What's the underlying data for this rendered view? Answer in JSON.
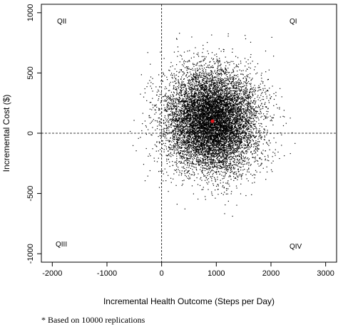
{
  "chart_data": {
    "type": "scatter",
    "title": "",
    "xlabel": "Incremental Health Outcome (Steps per Day)",
    "ylabel": "Incremental Cost ($)",
    "xlim": [
      -2200,
      3200
    ],
    "ylim": [
      -1070,
      1070
    ],
    "x_ticks": [
      -2000,
      -1000,
      0,
      1000,
      2000,
      3000
    ],
    "y_ticks": [
      -1000,
      -500,
      0,
      500,
      1000
    ],
    "x_tick_labels": [
      "-2000",
      "-1000",
      "0",
      "1000",
      "2000",
      "3000"
    ],
    "y_tick_labels": [
      "-1000",
      "-500",
      "0",
      "500",
      "1000"
    ],
    "reference_lines": {
      "x": 0,
      "y": 0,
      "style": "dashed"
    },
    "quadrant_labels": {
      "upper_right": "QI",
      "upper_left": "QII",
      "lower_left": "QIII",
      "lower_right": "QIV"
    },
    "point_cloud": {
      "replications": 10000,
      "mean_x": 930,
      "mean_y": 100,
      "x_spread_sd": 420,
      "y_spread_sd": 210,
      "approx_x_range": [
        -600,
        2500
      ],
      "approx_y_range": [
        -750,
        830
      ],
      "point_color": "#000000"
    },
    "point_estimate": {
      "x": 930,
      "y": 100,
      "color": "#e0151b"
    },
    "grid": false,
    "legend": "none"
  },
  "footnote": "* Based on 10000 replications"
}
